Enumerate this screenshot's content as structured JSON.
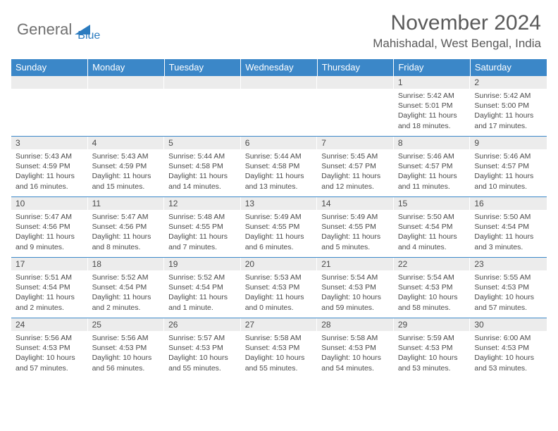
{
  "logo": {
    "general": "General",
    "blue": "Blue",
    "shape_color": "#2b7bbf",
    "text_gray": "#707070"
  },
  "title": "November 2024",
  "location": "Mahishadal, West Bengal, India",
  "colors": {
    "header_bg": "#3b87c8",
    "header_text": "#ffffff",
    "daynum_bg": "#ececec",
    "cell_text": "#4a4a4a",
    "title_text": "#5a5a5a",
    "border": "#3b87c8"
  },
  "weekdays": [
    "Sunday",
    "Monday",
    "Tuesday",
    "Wednesday",
    "Thursday",
    "Friday",
    "Saturday"
  ],
  "weeks": [
    [
      {
        "day": "",
        "sunrise": "",
        "sunset": "",
        "daylight": ""
      },
      {
        "day": "",
        "sunrise": "",
        "sunset": "",
        "daylight": ""
      },
      {
        "day": "",
        "sunrise": "",
        "sunset": "",
        "daylight": ""
      },
      {
        "day": "",
        "sunrise": "",
        "sunset": "",
        "daylight": ""
      },
      {
        "day": "",
        "sunrise": "",
        "sunset": "",
        "daylight": ""
      },
      {
        "day": "1",
        "sunrise": "Sunrise: 5:42 AM",
        "sunset": "Sunset: 5:01 PM",
        "daylight": "Daylight: 11 hours and 18 minutes."
      },
      {
        "day": "2",
        "sunrise": "Sunrise: 5:42 AM",
        "sunset": "Sunset: 5:00 PM",
        "daylight": "Daylight: 11 hours and 17 minutes."
      }
    ],
    [
      {
        "day": "3",
        "sunrise": "Sunrise: 5:43 AM",
        "sunset": "Sunset: 4:59 PM",
        "daylight": "Daylight: 11 hours and 16 minutes."
      },
      {
        "day": "4",
        "sunrise": "Sunrise: 5:43 AM",
        "sunset": "Sunset: 4:59 PM",
        "daylight": "Daylight: 11 hours and 15 minutes."
      },
      {
        "day": "5",
        "sunrise": "Sunrise: 5:44 AM",
        "sunset": "Sunset: 4:58 PM",
        "daylight": "Daylight: 11 hours and 14 minutes."
      },
      {
        "day": "6",
        "sunrise": "Sunrise: 5:44 AM",
        "sunset": "Sunset: 4:58 PM",
        "daylight": "Daylight: 11 hours and 13 minutes."
      },
      {
        "day": "7",
        "sunrise": "Sunrise: 5:45 AM",
        "sunset": "Sunset: 4:57 PM",
        "daylight": "Daylight: 11 hours and 12 minutes."
      },
      {
        "day": "8",
        "sunrise": "Sunrise: 5:46 AM",
        "sunset": "Sunset: 4:57 PM",
        "daylight": "Daylight: 11 hours and 11 minutes."
      },
      {
        "day": "9",
        "sunrise": "Sunrise: 5:46 AM",
        "sunset": "Sunset: 4:57 PM",
        "daylight": "Daylight: 11 hours and 10 minutes."
      }
    ],
    [
      {
        "day": "10",
        "sunrise": "Sunrise: 5:47 AM",
        "sunset": "Sunset: 4:56 PM",
        "daylight": "Daylight: 11 hours and 9 minutes."
      },
      {
        "day": "11",
        "sunrise": "Sunrise: 5:47 AM",
        "sunset": "Sunset: 4:56 PM",
        "daylight": "Daylight: 11 hours and 8 minutes."
      },
      {
        "day": "12",
        "sunrise": "Sunrise: 5:48 AM",
        "sunset": "Sunset: 4:55 PM",
        "daylight": "Daylight: 11 hours and 7 minutes."
      },
      {
        "day": "13",
        "sunrise": "Sunrise: 5:49 AM",
        "sunset": "Sunset: 4:55 PM",
        "daylight": "Daylight: 11 hours and 6 minutes."
      },
      {
        "day": "14",
        "sunrise": "Sunrise: 5:49 AM",
        "sunset": "Sunset: 4:55 PM",
        "daylight": "Daylight: 11 hours and 5 minutes."
      },
      {
        "day": "15",
        "sunrise": "Sunrise: 5:50 AM",
        "sunset": "Sunset: 4:54 PM",
        "daylight": "Daylight: 11 hours and 4 minutes."
      },
      {
        "day": "16",
        "sunrise": "Sunrise: 5:50 AM",
        "sunset": "Sunset: 4:54 PM",
        "daylight": "Daylight: 11 hours and 3 minutes."
      }
    ],
    [
      {
        "day": "17",
        "sunrise": "Sunrise: 5:51 AM",
        "sunset": "Sunset: 4:54 PM",
        "daylight": "Daylight: 11 hours and 2 minutes."
      },
      {
        "day": "18",
        "sunrise": "Sunrise: 5:52 AM",
        "sunset": "Sunset: 4:54 PM",
        "daylight": "Daylight: 11 hours and 2 minutes."
      },
      {
        "day": "19",
        "sunrise": "Sunrise: 5:52 AM",
        "sunset": "Sunset: 4:54 PM",
        "daylight": "Daylight: 11 hours and 1 minute."
      },
      {
        "day": "20",
        "sunrise": "Sunrise: 5:53 AM",
        "sunset": "Sunset: 4:53 PM",
        "daylight": "Daylight: 11 hours and 0 minutes."
      },
      {
        "day": "21",
        "sunrise": "Sunrise: 5:54 AM",
        "sunset": "Sunset: 4:53 PM",
        "daylight": "Daylight: 10 hours and 59 minutes."
      },
      {
        "day": "22",
        "sunrise": "Sunrise: 5:54 AM",
        "sunset": "Sunset: 4:53 PM",
        "daylight": "Daylight: 10 hours and 58 minutes."
      },
      {
        "day": "23",
        "sunrise": "Sunrise: 5:55 AM",
        "sunset": "Sunset: 4:53 PM",
        "daylight": "Daylight: 10 hours and 57 minutes."
      }
    ],
    [
      {
        "day": "24",
        "sunrise": "Sunrise: 5:56 AM",
        "sunset": "Sunset: 4:53 PM",
        "daylight": "Daylight: 10 hours and 57 minutes."
      },
      {
        "day": "25",
        "sunrise": "Sunrise: 5:56 AM",
        "sunset": "Sunset: 4:53 PM",
        "daylight": "Daylight: 10 hours and 56 minutes."
      },
      {
        "day": "26",
        "sunrise": "Sunrise: 5:57 AM",
        "sunset": "Sunset: 4:53 PM",
        "daylight": "Daylight: 10 hours and 55 minutes."
      },
      {
        "day": "27",
        "sunrise": "Sunrise: 5:58 AM",
        "sunset": "Sunset: 4:53 PM",
        "daylight": "Daylight: 10 hours and 55 minutes."
      },
      {
        "day": "28",
        "sunrise": "Sunrise: 5:58 AM",
        "sunset": "Sunset: 4:53 PM",
        "daylight": "Daylight: 10 hours and 54 minutes."
      },
      {
        "day": "29",
        "sunrise": "Sunrise: 5:59 AM",
        "sunset": "Sunset: 4:53 PM",
        "daylight": "Daylight: 10 hours and 53 minutes."
      },
      {
        "day": "30",
        "sunrise": "Sunrise: 6:00 AM",
        "sunset": "Sunset: 4:53 PM",
        "daylight": "Daylight: 10 hours and 53 minutes."
      }
    ]
  ]
}
